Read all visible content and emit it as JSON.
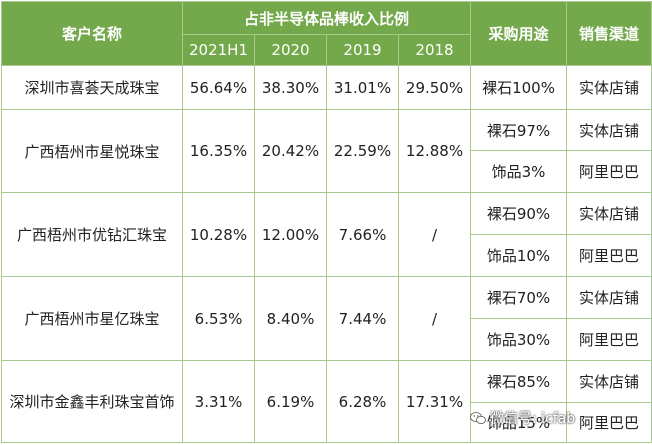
{
  "header": {
    "customer": "客户名称",
    "ratio_group": "占非半导体品棒收入比例",
    "years": [
      "2021H1",
      "2020",
      "2019",
      "2018"
    ],
    "purpose": "采购用途",
    "channel": "销售渠道"
  },
  "rows": [
    {
      "customer": "深圳市喜荟天成珠宝",
      "values": [
        "56.64%",
        "38.30%",
        "31.01%",
        "29.50%"
      ],
      "items": [
        {
          "purpose": "裸石100%",
          "channel": "实体店铺"
        }
      ]
    },
    {
      "customer": "广西梧州市星悦珠宝",
      "values": [
        "16.35%",
        "20.42%",
        "22.59%",
        "12.88%"
      ],
      "items": [
        {
          "purpose": "裸石97%",
          "channel": "实体店铺"
        },
        {
          "purpose": "饰品3%",
          "channel": "阿里巴巴"
        }
      ]
    },
    {
      "customer": "广西梧州市优钻汇珠宝",
      "values": [
        "10.28%",
        "12.00%",
        "7.66%",
        "/"
      ],
      "items": [
        {
          "purpose": "裸石90%",
          "channel": "实体店铺"
        },
        {
          "purpose": "饰品10%",
          "channel": "阿里巴巴"
        }
      ]
    },
    {
      "customer": "广西梧州市星亿珠宝",
      "values": [
        "6.53%",
        "8.40%",
        "7.44%",
        "/"
      ],
      "items": [
        {
          "purpose": "裸石70%",
          "channel": "实体店铺"
        },
        {
          "purpose": "饰品30%",
          "channel": "阿里巴巴"
        }
      ]
    },
    {
      "customer": "深圳市金鑫丰利珠宝首饰",
      "values": [
        "3.31%",
        "6.19%",
        "6.28%",
        "17.31%"
      ],
      "items": [
        {
          "purpose": "裸石85%",
          "channel": "实体店铺"
        },
        {
          "purpose": "饰品15%",
          "channel": "阿里巴巴"
        }
      ]
    }
  ],
  "watermark": {
    "text": "微信号: icfab",
    "icon": "wechat-icon"
  }
}
